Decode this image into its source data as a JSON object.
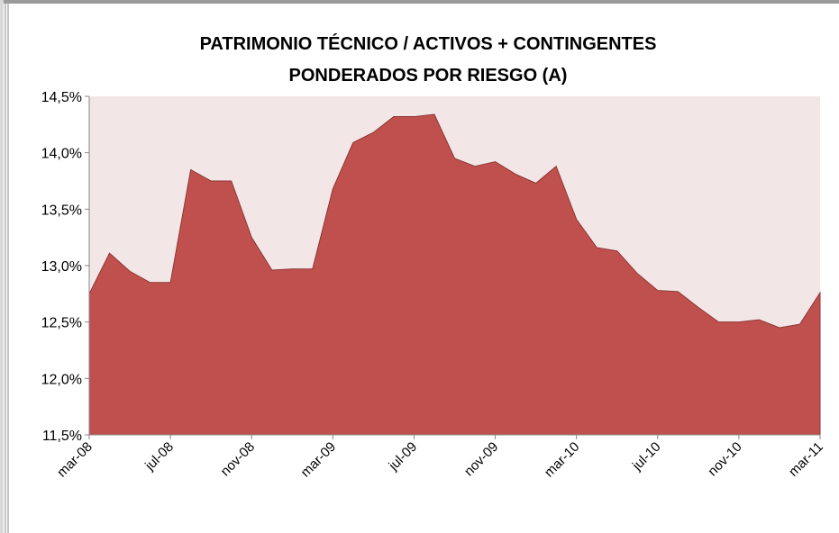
{
  "chart_data": {
    "type": "area",
    "title": "PATRIMONIO TÉCNICO / ACTIVOS + CONTINGENTES PONDERADOS POR RIESGO (A)",
    "categories": [
      "mar-08",
      null,
      null,
      null,
      "jul-08",
      null,
      null,
      null,
      "nov-08",
      null,
      null,
      null,
      "mar-09",
      null,
      null,
      null,
      "jul-09",
      null,
      null,
      null,
      "nov-09",
      null,
      null,
      null,
      "mar-10",
      null,
      null,
      null,
      "jul-10",
      null,
      null,
      null,
      "nov-10",
      null,
      null,
      null,
      "mar-11"
    ],
    "values": [
      12.75,
      13.11,
      12.95,
      12.85,
      12.85,
      13.85,
      13.75,
      13.75,
      13.25,
      12.96,
      12.97,
      12.97,
      13.68,
      14.09,
      14.18,
      14.32,
      14.32,
      14.34,
      13.95,
      13.88,
      13.92,
      13.81,
      13.73,
      13.88,
      13.41,
      13.16,
      13.13,
      12.93,
      12.78,
      12.77,
      12.63,
      12.5,
      12.5,
      12.52,
      12.45,
      12.48,
      12.76
    ],
    "color": "#c0504d",
    "ylim": [
      11.5,
      14.5
    ],
    "yticks": [
      {
        "value": 11.5,
        "label": "11,5%"
      },
      {
        "value": 12,
        "label": "12,0%"
      },
      {
        "value": 12.5,
        "label": "12,5%"
      },
      {
        "value": 13,
        "label": "13,0%"
      },
      {
        "value": 13.5,
        "label": "13,5%"
      },
      {
        "value": 14,
        "label": "14,0%"
      },
      {
        "value": 14.5,
        "label": "14,5%"
      }
    ]
  }
}
